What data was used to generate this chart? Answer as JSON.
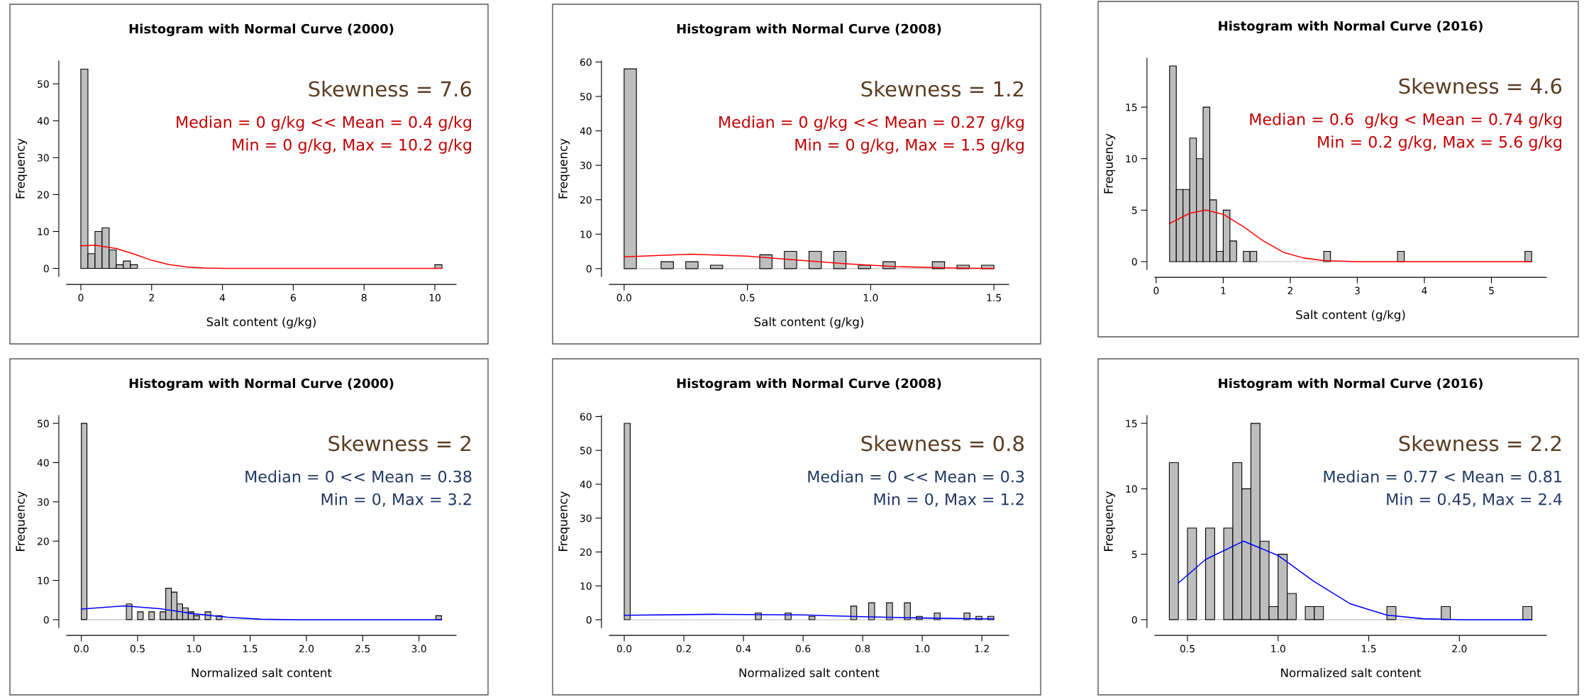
{
  "chart_data": [
    {
      "type": "histogram",
      "title": "Histogram with Normal Curve (2000)",
      "xlabel": "Salt content (g/kg)",
      "ylabel": "Frequency",
      "xlim": [
        -0.4,
        10.6
      ],
      "xticks": [
        0,
        2,
        4,
        6,
        8,
        10
      ],
      "ylim": [
        -2.2,
        56.2
      ],
      "yticks": [
        0,
        10,
        20,
        30,
        40,
        50
      ],
      "grid": false,
      "annotations": [
        "Skewness = 7.6",
        "Median = 0 g/kg << Mean = 0.4 g/kg",
        "Min = 0 g/kg, Max = 10.2 g/kg"
      ],
      "series": [
        {
          "type": "histogram",
          "color": "#bebebe",
          "bins": [
            0,
            0.2,
            0.4,
            0.6,
            0.8,
            1.0,
            1.2,
            1.4,
            1.6,
            1.8,
            2.0,
            2.2,
            2.4,
            2.6,
            2.8,
            3.0,
            3.2,
            3.4,
            3.6,
            3.8,
            4.0,
            4.2,
            4.4,
            4.6,
            4.8,
            5.0,
            5.2,
            5.4,
            5.6,
            5.8,
            6.0,
            6.2,
            6.4,
            6.6,
            6.8,
            7.0,
            7.2,
            7.4,
            7.6,
            7.8,
            8.0,
            8.2,
            8.4,
            8.6,
            8.8,
            9.0,
            9.2,
            9.4,
            9.6,
            9.8,
            10.0,
            10.2
          ],
          "values": [
            54,
            4,
            10,
            11,
            5,
            1,
            2,
            1,
            0,
            0,
            0,
            0,
            0,
            0,
            0,
            0,
            0,
            0,
            0,
            0,
            0,
            0,
            0,
            0,
            0,
            0,
            0,
            0,
            0,
            0,
            0,
            0,
            0,
            0,
            0,
            0,
            0,
            0,
            0,
            0,
            0,
            0,
            0,
            0,
            0,
            0,
            0,
            0,
            0,
            0,
            1
          ]
        },
        {
          "type": "line",
          "color": "#ff0000",
          "x": [
            0,
            0.4,
            1.0,
            1.5,
            2.0,
            2.5,
            3.0,
            3.5,
            4.0,
            10.2
          ],
          "values": [
            6.1,
            6.3,
            5.4,
            3.9,
            2.2,
            1.0,
            0.4,
            0.1,
            0,
            0
          ]
        }
      ]
    },
    {
      "type": "histogram",
      "title": "Histogram with Normal Curve (2008)",
      "xlabel": "Salt content (g/kg)",
      "ylabel": "Frequency",
      "xlim": [
        -0.06,
        1.56
      ],
      "xticks": [
        {
          "value": 0,
          "label": "0.0"
        },
        0.5,
        {
          "value": 1,
          "label": "1.0"
        },
        1.5
      ],
      "ylim": [
        -2.3,
        60.3
      ],
      "yticks": [
        0,
        10,
        20,
        30,
        40,
        50,
        60
      ],
      "grid": false,
      "annotations": [
        "Skewness = 1.2",
        "Median = 0 g/kg << Mean = 0.27 g/kg",
        "Min = 0 g/kg, Max = 1.5 g/kg"
      ],
      "series": [
        {
          "type": "histogram",
          "color": "#bebebe",
          "bins": [
            0,
            0.05,
            0.1,
            0.15,
            0.2,
            0.25,
            0.3,
            0.35,
            0.4,
            0.45,
            0.5,
            0.55,
            0.6,
            0.65,
            0.7,
            0.75,
            0.8,
            0.85,
            0.9,
            0.95,
            1.0,
            1.05,
            1.1,
            1.15,
            1.2,
            1.25,
            1.3,
            1.35,
            1.4,
            1.45,
            1.5
          ],
          "values": [
            58,
            0,
            0,
            2,
            0,
            2,
            0,
            1,
            0,
            0,
            0,
            4,
            0,
            5,
            0,
            5,
            0,
            5,
            0,
            1,
            0,
            2,
            0,
            0,
            0,
            2,
            0,
            1,
            0,
            1
          ]
        },
        {
          "type": "line",
          "color": "#ff0000",
          "x": [
            0,
            0.27,
            0.5,
            0.7,
            0.9,
            1.1,
            1.3,
            1.5
          ],
          "values": [
            3.4,
            4.2,
            3.6,
            2.5,
            1.4,
            0.6,
            0.2,
            0
          ]
        }
      ]
    },
    {
      "type": "histogram",
      "title": "Histogram with Normal Curve (2016)",
      "xlabel": "Salt content (g/kg)",
      "ylabel": "Frequency",
      "xlim": [
        -0.02,
        5.82
      ],
      "xticks": [
        0,
        1,
        2,
        3,
        4,
        5
      ],
      "ylim": [
        -0.76,
        19.76
      ],
      "yticks": [
        0,
        5,
        10,
        15
      ],
      "grid": false,
      "annotations": [
        "Skewness = 4.6",
        "Median = 0.6  g/kg < Mean = 0.74 g/kg",
        "Min = 0.2 g/kg, Max = 5.6 g/kg"
      ],
      "series": [
        {
          "type": "histogram",
          "color": "#bebebe",
          "bins": [
            0.2,
            0.3,
            0.4,
            0.5,
            0.6,
            0.7,
            0.8,
            0.9,
            1.0,
            1.1,
            1.2,
            1.3,
            1.4,
            1.5,
            1.6,
            1.7,
            1.8,
            1.9,
            2.0,
            2.1,
            2.2,
            2.3,
            2.4,
            2.5,
            2.6,
            2.7,
            2.8,
            2.9,
            3.0,
            3.1,
            3.2,
            3.3,
            3.4,
            3.5,
            3.6,
            3.7,
            3.8,
            3.9,
            4.0,
            4.1,
            4.2,
            4.3,
            4.4,
            4.5,
            4.6,
            4.7,
            4.8,
            4.9,
            5.0,
            5.1,
            5.2,
            5.3,
            5.4,
            5.5,
            5.6
          ],
          "values": [
            19,
            7,
            7,
            12,
            10,
            15,
            6,
            1,
            5,
            2,
            0,
            1,
            1,
            0,
            0,
            0,
            0,
            0,
            0,
            0,
            0,
            0,
            0,
            1,
            0,
            0,
            0,
            0,
            0,
            0,
            0,
            0,
            0,
            0,
            1,
            0,
            0,
            0,
            0,
            0,
            0,
            0,
            0,
            0,
            0,
            0,
            0,
            0,
            0,
            0,
            0,
            0,
            0,
            1
          ]
        },
        {
          "type": "line",
          "color": "#ff0000",
          "x": [
            0.2,
            0.5,
            0.74,
            1.0,
            1.3,
            1.6,
            1.9,
            2.2,
            2.5,
            3.0,
            5.6
          ],
          "values": [
            3.7,
            4.7,
            5.0,
            4.6,
            3.4,
            2.0,
            0.9,
            0.35,
            0.1,
            0,
            0
          ]
        }
      ]
    },
    {
      "type": "histogram",
      "title": "Histogram with Normal Curve (2000)",
      "xlabel": "Normalized salt content",
      "ylabel": "Frequency",
      "xlim": [
        -0.13,
        3.33
      ],
      "xticks": [
        {
          "value": 0,
          "label": "0.0"
        },
        0.5,
        {
          "value": 1,
          "label": "1.0"
        },
        1.5,
        {
          "value": 2,
          "label": "2.0"
        },
        2.5,
        {
          "value": 3,
          "label": "3.0"
        }
      ],
      "ylim": [
        -2,
        52
      ],
      "yticks": [
        0,
        10,
        20,
        30,
        40,
        50
      ],
      "grid": false,
      "annotations": [
        "Skewness = 2",
        "Median = 0 << Mean = 0.38",
        "Min = 0, Max = 3.2"
      ],
      "series": [
        {
          "type": "histogram",
          "color": "#bebebe",
          "bins": [
            0,
            0.05,
            0.1,
            0.15,
            0.2,
            0.25,
            0.3,
            0.35,
            0.4,
            0.45,
            0.5,
            0.55,
            0.6,
            0.65,
            0.7,
            0.75,
            0.8,
            0.85,
            0.9,
            0.95,
            1.0,
            1.05,
            1.1,
            1.15,
            1.2,
            1.25,
            1.3,
            1.35,
            1.4,
            1.45,
            1.5,
            1.55,
            1.6,
            1.65,
            1.7,
            1.75,
            1.8,
            1.85,
            1.9,
            1.95,
            2.0,
            2.05,
            2.1,
            2.15,
            2.2,
            2.25,
            2.3,
            2.35,
            2.4,
            2.45,
            2.5,
            2.55,
            2.6,
            2.65,
            2.7,
            2.75,
            2.8,
            2.85,
            2.9,
            2.95,
            3.0,
            3.05,
            3.1,
            3.15,
            3.2
          ],
          "values": [
            50,
            0,
            0,
            0,
            0,
            0,
            0,
            0,
            4,
            0,
            2,
            0,
            2,
            0,
            2,
            8,
            7,
            4,
            3,
            2,
            1,
            0,
            2,
            0,
            1,
            0,
            0,
            0,
            0,
            0,
            0,
            0,
            0,
            0,
            0,
            0,
            0,
            0,
            0,
            0,
            0,
            0,
            0,
            0,
            0,
            0,
            0,
            0,
            0,
            0,
            0,
            0,
            0,
            0,
            0,
            0,
            0,
            0,
            0,
            0,
            0,
            0,
            0,
            1
          ]
        },
        {
          "type": "line",
          "color": "#0000ff",
          "x": [
            0,
            0.38,
            0.7,
            1.0,
            1.3,
            1.6,
            1.9,
            3.2
          ],
          "values": [
            2.7,
            3.5,
            2.8,
            1.5,
            0.6,
            0.1,
            0,
            0
          ]
        }
      ]
    },
    {
      "type": "histogram",
      "title": "Histogram with Normal Curve (2008)",
      "xlabel": "Normalized salt content",
      "ylabel": "Frequency",
      "xlim": [
        -0.05,
        1.29
      ],
      "xticks": [
        {
          "value": 0,
          "label": "0.0"
        },
        0.2,
        0.4,
        0.6,
        0.8,
        {
          "value": 1,
          "label": "1.0"
        },
        1.2
      ],
      "ylim": [
        -2.3,
        60.3
      ],
      "yticks": [
        0,
        10,
        20,
        30,
        40,
        50,
        60
      ],
      "grid": false,
      "annotations": [
        "Skewness = 0.8",
        "Median = 0 << Mean = 0.3",
        "Min = 0, Max = 1.2"
      ],
      "series": [
        {
          "type": "histogram",
          "color": "#bebebe",
          "bins": [
            0,
            0.02,
            0.04,
            0.06,
            0.08,
            0.1,
            0.12,
            0.14,
            0.16,
            0.18,
            0.2,
            0.22,
            0.24,
            0.26,
            0.28,
            0.3,
            0.32,
            0.34,
            0.36,
            0.38,
            0.4,
            0.42,
            0.44,
            0.46,
            0.48,
            0.5,
            0.52,
            0.54,
            0.56,
            0.58,
            0.6,
            0.62,
            0.64,
            0.66,
            0.68,
            0.7,
            0.72,
            0.74,
            0.76,
            0.78,
            0.8,
            0.82,
            0.84,
            0.86,
            0.88,
            0.9,
            0.92,
            0.94,
            0.96,
            0.98,
            1.0,
            1.02,
            1.04,
            1.06,
            1.08,
            1.1,
            1.12,
            1.14,
            1.16,
            1.18,
            1.2,
            1.22,
            1.24
          ],
          "values": [
            58,
            0,
            0,
            0,
            0,
            0,
            0,
            0,
            0,
            0,
            0,
            0,
            0,
            0,
            0,
            0,
            0,
            0,
            0,
            0,
            0,
            0,
            2,
            0,
            0,
            0,
            0,
            2,
            0,
            0,
            0,
            1,
            0,
            0,
            0,
            0,
            0,
            0,
            4,
            0,
            0,
            5,
            0,
            0,
            5,
            0,
            0,
            5,
            0,
            1,
            0,
            0,
            2,
            0,
            0,
            0,
            0,
            2,
            0,
            1,
            0,
            1
          ]
        },
        {
          "type": "line",
          "color": "#0000ff",
          "x": [
            0,
            0.3,
            0.6,
            0.8,
            1.0,
            1.24
          ],
          "values": [
            1.3,
            1.6,
            1.4,
            0.9,
            0.5,
            0.2
          ]
        }
      ]
    },
    {
      "type": "histogram",
      "title": "Histogram with Normal Curve (2016)",
      "xlabel": "Normalized salt content",
      "ylabel": "Frequency",
      "xlim": [
        0.32,
        2.48
      ],
      "xticks": [
        0.5,
        {
          "value": 1,
          "label": "1.0"
        },
        1.5,
        {
          "value": 2,
          "label": "2.0"
        }
      ],
      "ylim": [
        -0.6,
        15.6
      ],
      "yticks": [
        0,
        5,
        10,
        15
      ],
      "grid": false,
      "annotations": [
        "Skewness = 2.2",
        "Median = 0.77 < Mean = 0.81",
        "Min = 0.45, Max = 2.4"
      ],
      "series": [
        {
          "type": "histogram",
          "color": "#bebebe",
          "bins": [
            0.4,
            0.45,
            0.5,
            0.55,
            0.6,
            0.65,
            0.7,
            0.75,
            0.8,
            0.85,
            0.9,
            0.95,
            1.0,
            1.05,
            1.1,
            1.15,
            1.2,
            1.25,
            1.3,
            1.35,
            1.4,
            1.45,
            1.5,
            1.55,
            1.6,
            1.65,
            1.7,
            1.75,
            1.8,
            1.85,
            1.9,
            1.95,
            2.0,
            2.05,
            2.1,
            2.15,
            2.2,
            2.25,
            2.3,
            2.35,
            2.4
          ],
          "values": [
            12,
            0,
            7,
            0,
            7,
            0,
            7,
            12,
            10,
            15,
            6,
            1,
            5,
            2,
            0,
            1,
            1,
            0,
            0,
            0,
            0,
            0,
            0,
            0,
            1,
            0,
            0,
            0,
            0,
            0,
            1,
            0,
            0,
            0,
            0,
            0,
            0,
            0,
            0,
            1
          ]
        },
        {
          "type": "line",
          "color": "#0000ff",
          "x": [
            0.45,
            0.6,
            0.81,
            1.0,
            1.2,
            1.4,
            1.6,
            1.8,
            2.0,
            2.4
          ],
          "values": [
            2.8,
            4.6,
            6.0,
            4.9,
            2.9,
            1.2,
            0.35,
            0.07,
            0,
            0
          ]
        }
      ]
    }
  ]
}
